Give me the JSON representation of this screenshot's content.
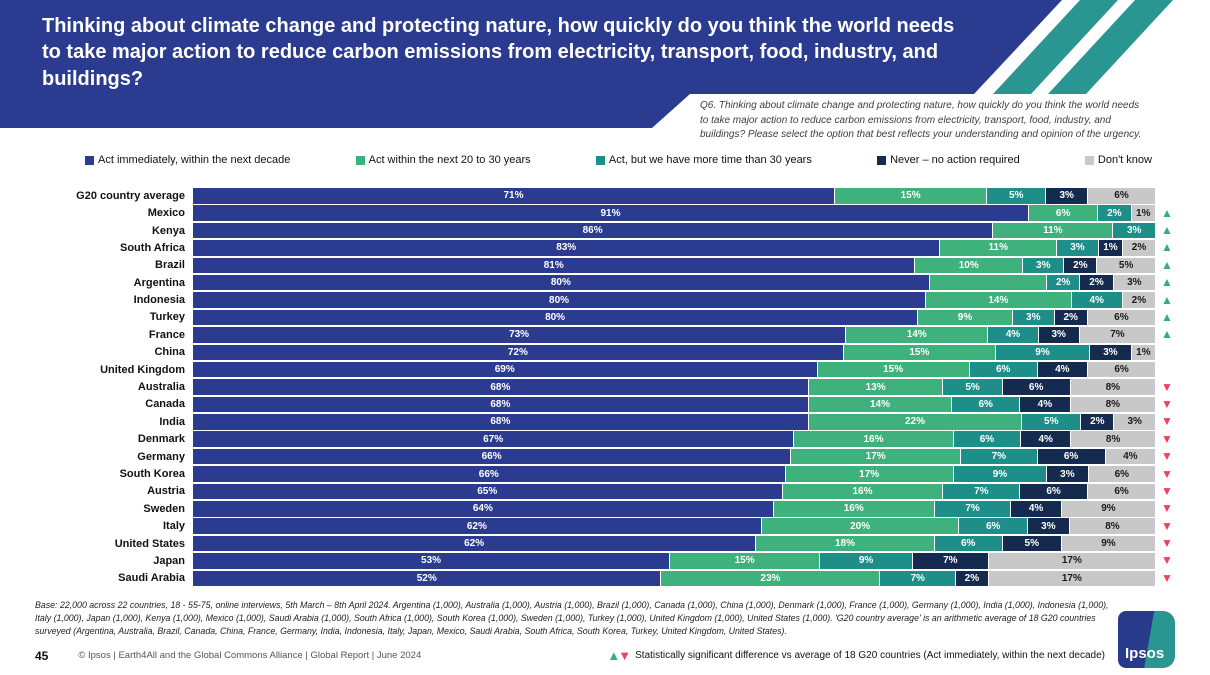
{
  "title": "Thinking about climate change and protecting nature, how quickly do you think the world needs to take major action to reduce carbon emissions from electricity, transport, food, industry, and buildings?",
  "question_note": "Q6. Thinking about climate change and protecting nature, how quickly do you think the world needs to take major action to reduce carbon emissions from electricity, transport, food, industry, and buildings? Please select the option that best reflects your understanding and opinion of the urgency.",
  "legend": [
    {
      "label": "Act immediately, within the next decade",
      "color": "#2b3b8f"
    },
    {
      "label": "Act within the next 20 to 30 years",
      "color": "#3eb17c"
    },
    {
      "label": "Act, but we have more time than 30 years",
      "color": "#1d8e88"
    },
    {
      "label": "Never – no action required",
      "color": "#142a4e"
    },
    {
      "label": "Don't know",
      "color": "#c8c8c8"
    }
  ],
  "colors": {
    "header_blue": "#2b3b8f",
    "stripe_teal": "#2a9692",
    "segment": [
      "#2b3b8f",
      "#3eb17c",
      "#1d8e88",
      "#142a4e",
      "#c8c8c8"
    ],
    "label_on_segment": [
      "#ffffff",
      "#ffffff",
      "#ffffff",
      "#ffffff",
      "#1a1a1a"
    ],
    "arrow_up": "#2fb277",
    "arrow_down": "#ee4256"
  },
  "icons": {
    "up_arrow": "▲",
    "down_arrow": "▼"
  },
  "chart_data": {
    "type": "bar",
    "stacked": true,
    "orientation": "horizontal",
    "unit": "%",
    "xlim": [
      0,
      100
    ],
    "series_names": [
      "Act immediately, within the next decade",
      "Act within the next 20 to 30 years",
      "Act, but we have more time than 30 years",
      "Never – no action required",
      "Don't know"
    ],
    "rows": [
      {
        "country": "G20 country average",
        "values": [
          71,
          15,
          5,
          3,
          6
        ],
        "labels": [
          "71%",
          "15%",
          "5%",
          "3%",
          "6%"
        ],
        "arrow": "none"
      },
      {
        "country": "Mexico",
        "values": [
          91,
          6,
          2,
          0,
          1
        ],
        "labels": [
          "91%",
          "6%",
          "2%",
          "",
          "1%"
        ],
        "arrow": "up"
      },
      {
        "country": "Kenya",
        "values": [
          86,
          11,
          3,
          0,
          0
        ],
        "labels": [
          "86%",
          "11%",
          "3%",
          "",
          ""
        ],
        "arrow": "up"
      },
      {
        "country": "South Africa",
        "values": [
          83,
          11,
          3,
          1,
          2
        ],
        "labels": [
          "83%",
          "11%",
          "3%",
          "1%",
          "2%"
        ],
        "arrow": "up"
      },
      {
        "country": "Brazil",
        "values": [
          81,
          10,
          3,
          2,
          5
        ],
        "labels": [
          "81%",
          "10%",
          "3%",
          "2%",
          "5%"
        ],
        "arrow": "up"
      },
      {
        "country": "Argentina",
        "values": [
          80,
          13,
          2,
          2,
          3
        ],
        "labels": [
          "80%",
          "",
          "2%",
          "2%",
          "3%"
        ],
        "arrow": "up"
      },
      {
        "country": "Indonesia",
        "values": [
          80,
          14,
          4,
          0,
          2
        ],
        "labels": [
          "80%",
          "14%",
          "4%",
          "",
          "2%"
        ],
        "arrow": "up"
      },
      {
        "country": "Turkey",
        "values": [
          80,
          9,
          3,
          2,
          6
        ],
        "labels": [
          "80%",
          "9%",
          "3%",
          "2%",
          "6%"
        ],
        "arrow": "up"
      },
      {
        "country": "France",
        "values": [
          73,
          14,
          4,
          3,
          7
        ],
        "labels": [
          "73%",
          "14%",
          "4%",
          "3%",
          "7%"
        ],
        "arrow": "up"
      },
      {
        "country": "China",
        "values": [
          72,
          15,
          9,
          3,
          1
        ],
        "labels": [
          "72%",
          "15%",
          "9%",
          "3%",
          "1%"
        ],
        "arrow": "none"
      },
      {
        "country": "United Kingdom",
        "values": [
          69,
          15,
          6,
          4,
          6
        ],
        "labels": [
          "69%",
          "15%",
          "6%",
          "4%",
          "6%"
        ],
        "arrow": "none"
      },
      {
        "country": "Australia",
        "values": [
          68,
          13,
          5,
          6,
          8
        ],
        "labels": [
          "68%",
          "13%",
          "5%",
          "6%",
          "8%"
        ],
        "arrow": "down"
      },
      {
        "country": "Canada",
        "values": [
          68,
          14,
          6,
          4,
          8
        ],
        "labels": [
          "68%",
          "14%",
          "6%",
          "4%",
          "8%"
        ],
        "arrow": "down"
      },
      {
        "country": "India",
        "values": [
          68,
          22,
          5,
          2,
          3
        ],
        "labels": [
          "68%",
          "22%",
          "5%",
          "2%",
          "3%"
        ],
        "arrow": "down"
      },
      {
        "country": "Denmark",
        "values": [
          67,
          16,
          6,
          4,
          8
        ],
        "labels": [
          "67%",
          "16%",
          "6%",
          "4%",
          "8%"
        ],
        "arrow": "down"
      },
      {
        "country": "Germany",
        "values": [
          66,
          17,
          7,
          6,
          4
        ],
        "labels": [
          "66%",
          "17%",
          "7%",
          "6%",
          "4%"
        ],
        "arrow": "down"
      },
      {
        "country": "South Korea",
        "values": [
          66,
          17,
          9,
          3,
          6
        ],
        "labels": [
          "66%",
          "17%",
          "9%",
          "3%",
          "6%"
        ],
        "arrow": "down"
      },
      {
        "country": "Austria",
        "values": [
          65,
          16,
          7,
          6,
          6
        ],
        "labels": [
          "65%",
          "16%",
          "7%",
          "6%",
          "6%"
        ],
        "arrow": "down"
      },
      {
        "country": "Sweden",
        "values": [
          64,
          16,
          7,
          4,
          9
        ],
        "labels": [
          "64%",
          "16%",
          "7%",
          "4%",
          "9%"
        ],
        "arrow": "down"
      },
      {
        "country": "Italy",
        "values": [
          62,
          20,
          6,
          3,
          8
        ],
        "labels": [
          "62%",
          "20%",
          "6%",
          "3%",
          "8%"
        ],
        "arrow": "down"
      },
      {
        "country": "United States",
        "values": [
          62,
          18,
          6,
          5,
          9
        ],
        "labels": [
          "62%",
          "18%",
          "6%",
          "5%",
          "9%"
        ],
        "arrow": "down"
      },
      {
        "country": "Japan",
        "values": [
          53,
          15,
          9,
          7,
          17
        ],
        "labels": [
          "53%",
          "15%",
          "9%",
          "7%",
          "17%"
        ],
        "arrow": "down"
      },
      {
        "country": "Saudi Arabia",
        "values": [
          52,
          23,
          7,
          2,
          17
        ],
        "labels": [
          "52%",
          "23%",
          "7%",
          "2%",
          "17%"
        ],
        "arrow": "down"
      }
    ]
  },
  "footer": {
    "base_note": "Base: 22,000 across 22 countries, 18 - 55-75, online interviews, 5th March – 8th April 2024. Argentina (1,000), Australia (1,000), Austria (1,000), Brazil (1,000), Canada (1,000), China (1,000), Denmark (1,000), France (1,000), Germany (1,000), India (1,000), Indonesia (1,000), Italy (1,000), Japan (1,000), Kenya (1,000), Mexico (1,000), Saudi Arabia (1,000), South Africa (1,000), South Korea (1,000), Sweden (1,000), Turkey (1,000), United Kingdom (1,000), United States (1,000). 'G20 country average' is an arithmetic average of 18 G20 countries surveyed (Argentina, Australia, Brazil, Canada, China, France, Germany, India, Indonesia, Italy, Japan, Mexico, Saudi Arabia, South Africa, South Korea, Turkey, United Kingdom, United States).",
    "page_number": "45",
    "copyright": "© Ipsos | Earth4All and the Global Commons Alliance | Global Report | June 2024",
    "significance_note": "Statistically significant difference vs average of 18 G20 countries (Act immediately, within the next decade)",
    "logo_text": "Ipsos"
  }
}
